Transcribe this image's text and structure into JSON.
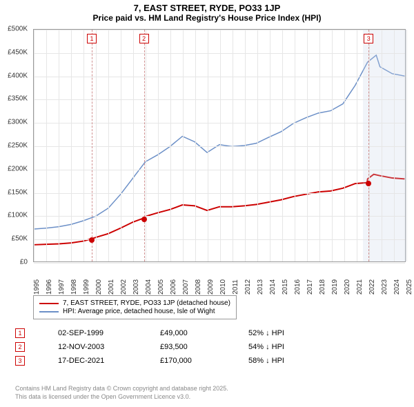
{
  "title": "7, EAST STREET, RYDE, PO33 1JP",
  "subtitle": "Price paid vs. HM Land Registry's House Price Index (HPI)",
  "chart": {
    "type": "line",
    "background_color": "#ffffff",
    "grid_color": "#e6e6e6",
    "border_color": "#999999",
    "x_axis": {
      "years": [
        1995,
        1996,
        1997,
        1998,
        1999,
        2000,
        2001,
        2002,
        2003,
        2004,
        2005,
        2006,
        2007,
        2008,
        2009,
        2010,
        2011,
        2012,
        2013,
        2014,
        2015,
        2016,
        2017,
        2018,
        2019,
        2020,
        2021,
        2022,
        2023,
        2024,
        2025
      ],
      "min": 1995,
      "max": 2025,
      "label_fontsize": 10
    },
    "y_axis": {
      "ticks": [
        0,
        50000,
        100000,
        150000,
        200000,
        250000,
        300000,
        350000,
        400000,
        450000,
        500000
      ],
      "tick_labels": [
        "£0",
        "£50K",
        "£100K",
        "£150K",
        "£200K",
        "£250K",
        "£300K",
        "£350K",
        "£400K",
        "£450K",
        "£500K"
      ],
      "min": 0,
      "max": 500000,
      "label_fontsize": 10
    },
    "shaded_region": {
      "from": 2021.5,
      "to": 2025,
      "color": "rgba(200,210,230,0.25)"
    },
    "series": [
      {
        "name": "7, EAST STREET, RYDE, PO33 1JP (detached house)",
        "color": "#cc0000",
        "line_width": 2,
        "points": [
          [
            1995,
            36000
          ],
          [
            1996,
            37000
          ],
          [
            1997,
            38000
          ],
          [
            1998,
            40000
          ],
          [
            1999,
            44000
          ],
          [
            1999.67,
            49000
          ],
          [
            2000,
            52000
          ],
          [
            2001,
            60000
          ],
          [
            2002,
            72000
          ],
          [
            2003,
            85000
          ],
          [
            2003.87,
            93500
          ],
          [
            2004,
            97000
          ],
          [
            2005,
            105000
          ],
          [
            2006,
            112000
          ],
          [
            2007,
            122000
          ],
          [
            2008,
            120000
          ],
          [
            2009,
            110000
          ],
          [
            2010,
            118000
          ],
          [
            2011,
            118000
          ],
          [
            2012,
            120000
          ],
          [
            2013,
            123000
          ],
          [
            2014,
            128000
          ],
          [
            2015,
            133000
          ],
          [
            2016,
            140000
          ],
          [
            2017,
            145000
          ],
          [
            2018,
            150000
          ],
          [
            2019,
            152000
          ],
          [
            2020,
            158000
          ],
          [
            2021,
            168000
          ],
          [
            2021.96,
            170000
          ],
          [
            2022,
            178000
          ],
          [
            2022.5,
            188000
          ],
          [
            2023,
            185000
          ],
          [
            2024,
            180000
          ],
          [
            2025,
            178000
          ]
        ]
      },
      {
        "name": "HPI: Average price, detached house, Isle of Wight",
        "color": "#6b8fc7",
        "line_width": 1.5,
        "points": [
          [
            1995,
            70000
          ],
          [
            1996,
            72000
          ],
          [
            1997,
            75000
          ],
          [
            1998,
            80000
          ],
          [
            1999,
            88000
          ],
          [
            2000,
            98000
          ],
          [
            2001,
            115000
          ],
          [
            2002,
            145000
          ],
          [
            2003,
            180000
          ],
          [
            2004,
            215000
          ],
          [
            2005,
            230000
          ],
          [
            2006,
            248000
          ],
          [
            2007,
            270000
          ],
          [
            2008,
            258000
          ],
          [
            2009,
            235000
          ],
          [
            2010,
            252000
          ],
          [
            2011,
            248000
          ],
          [
            2012,
            250000
          ],
          [
            2013,
            255000
          ],
          [
            2014,
            268000
          ],
          [
            2015,
            280000
          ],
          [
            2016,
            298000
          ],
          [
            2017,
            310000
          ],
          [
            2018,
            320000
          ],
          [
            2019,
            325000
          ],
          [
            2020,
            340000
          ],
          [
            2021,
            380000
          ],
          [
            2022,
            430000
          ],
          [
            2022.7,
            445000
          ],
          [
            2023,
            420000
          ],
          [
            2024,
            405000
          ],
          [
            2025,
            400000
          ]
        ]
      }
    ],
    "sale_markers": [
      {
        "id": "1",
        "x": 1999.67,
        "y": 49000,
        "color": "#cc0000"
      },
      {
        "id": "2",
        "x": 2003.87,
        "y": 93500,
        "color": "#cc0000"
      },
      {
        "id": "3",
        "x": 2021.96,
        "y": 170000,
        "color": "#cc0000"
      }
    ],
    "vlines": [
      {
        "id": "1",
        "x": 1999.67,
        "box_color": "#cc0000"
      },
      {
        "id": "2",
        "x": 2003.87,
        "box_color": "#cc0000"
      },
      {
        "id": "3",
        "x": 2021.96,
        "box_color": "#cc0000"
      }
    ]
  },
  "legend": {
    "rows": [
      {
        "color": "#cc0000",
        "label": "7, EAST STREET, RYDE, PO33 1JP (detached house)"
      },
      {
        "color": "#6b8fc7",
        "label": "HPI: Average price, detached house, Isle of Wight"
      }
    ]
  },
  "events": [
    {
      "id": "1",
      "box_color": "#cc0000",
      "date": "02-SEP-1999",
      "price": "£49,000",
      "rel": "52% ↓ HPI"
    },
    {
      "id": "2",
      "box_color": "#cc0000",
      "date": "12-NOV-2003",
      "price": "£93,500",
      "rel": "54% ↓ HPI"
    },
    {
      "id": "3",
      "box_color": "#cc0000",
      "date": "17-DEC-2021",
      "price": "£170,000",
      "rel": "58% ↓ HPI"
    }
  ],
  "footer": {
    "line1": "Contains HM Land Registry data © Crown copyright and database right 2025.",
    "line2": "This data is licensed under the Open Government Licence v3.0."
  }
}
